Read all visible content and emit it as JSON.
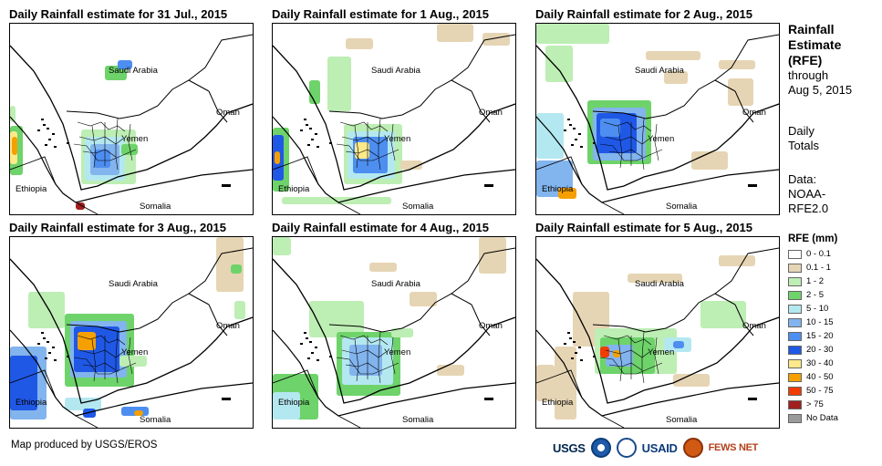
{
  "panels": [
    {
      "title": "Daily Rainfall estimate for 31 Jul., 2015"
    },
    {
      "title": "Daily Rainfall estimate for 1 Aug., 2015"
    },
    {
      "title": "Daily Rainfall estimate for 2 Aug., 2015"
    },
    {
      "title": "Daily Rainfall estimate for 3 Aug., 2015"
    },
    {
      "title": "Daily Rainfall estimate for 4 Aug., 2015"
    },
    {
      "title": "Daily Rainfall estimate for 5 Aug., 2015"
    }
  ],
  "map_labels": {
    "saudi": "Saudi Arabia",
    "yemen": "Yemen",
    "oman": "Oman",
    "ethiopia": "Ethiopia",
    "somalia": "Somalia"
  },
  "sidebar": {
    "title_line1": "Rainfall",
    "title_line2": "Estimate",
    "title_line3": "(RFE)",
    "through": "through",
    "date": "Aug 5, 2015",
    "daily": "Daily",
    "totals": "Totals",
    "data_label": "Data:",
    "data_src1": "NOAA-",
    "data_src2": "RFE2.0"
  },
  "legend": {
    "title": "RFE (mm)",
    "items": [
      {
        "label": "0 - 0.1",
        "color": "#ffffff"
      },
      {
        "label": "0.1 - 1",
        "color": "#e6d5b4"
      },
      {
        "label": "1 - 2",
        "color": "#bdeeb4"
      },
      {
        "label": "2 - 5",
        "color": "#6ed36a"
      },
      {
        "label": "5 - 10",
        "color": "#b4e8f0"
      },
      {
        "label": "10 - 15",
        "color": "#82b4ee"
      },
      {
        "label": "15 - 20",
        "color": "#4d8ef0"
      },
      {
        "label": "20 - 30",
        "color": "#2058e6"
      },
      {
        "label": "30 - 40",
        "color": "#ffe98a"
      },
      {
        "label": "40 - 50",
        "color": "#f5a000"
      },
      {
        "label": "50 - 75",
        "color": "#f03c00"
      },
      {
        "label": "> 75",
        "color": "#a01e1e"
      },
      {
        "label": "No Data",
        "color": "#9b9b9b"
      }
    ]
  },
  "footer": {
    "credit": "Map produced by USGS/EROS",
    "logo_usgs": "USGS",
    "logo_usaid": "USAID",
    "logo_fews": "FEWS NET"
  }
}
